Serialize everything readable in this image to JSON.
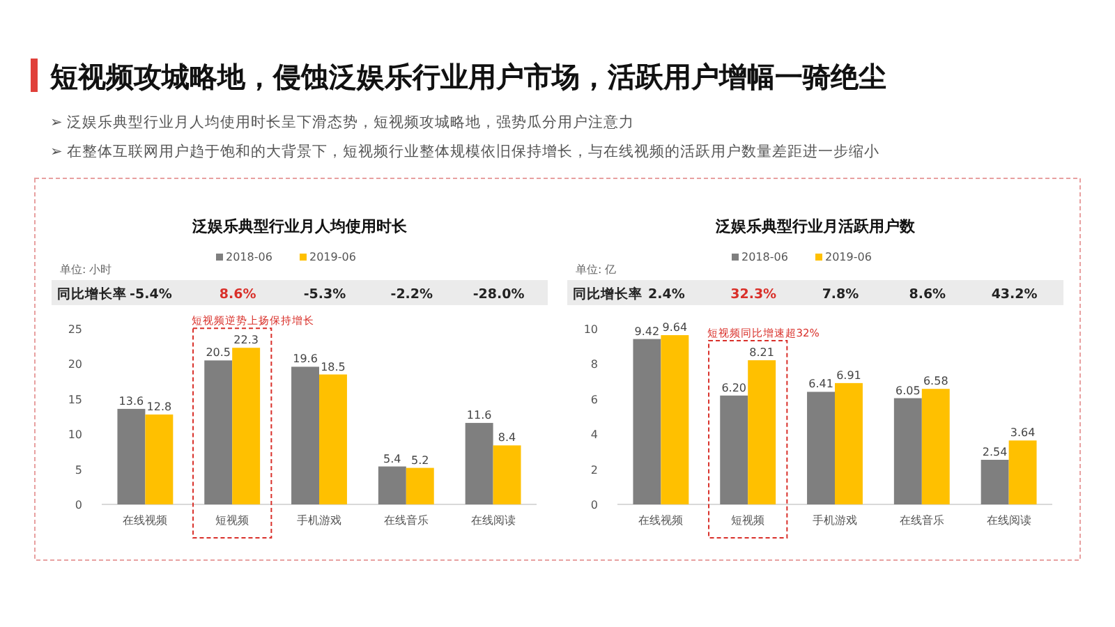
{
  "chart_data": [
    {
      "type": "bar",
      "title": "泛娱乐典型行业月人均使用时长",
      "ylabel": "单位: 小时",
      "categories": [
        "在线视频",
        "短视频",
        "手机游戏",
        "在线音乐",
        "在线阅读"
      ],
      "series": [
        {
          "name": "2018-06",
          "color": "#7f7f7f",
          "values": [
            13.6,
            20.5,
            19.6,
            5.4,
            11.6
          ]
        },
        {
          "name": "2019-06",
          "color": "#ffc000",
          "values": [
            12.8,
            22.3,
            18.5,
            5.2,
            8.4
          ]
        }
      ],
      "ylim": [
        0,
        25
      ],
      "yticks": [
        0,
        5,
        10,
        15,
        20,
        25
      ],
      "legend": "top",
      "data_labels": true,
      "annotations": [
        "短视频攻城略地，侵蚀泛娱乐行业用户市场，活跃用户增幅一骑绝尘",
        "➢ 泛娱乐典型行业月人均使用时长呈下滑态势，短视频攻城略地，强势瓜分用户注意力",
        "➢ 在整体互联网用户趋于饱和的大背景下，短视频行业整体规模依旧保持增长，与在线视频的活跃用户数量差距进一步缩小",
        "同比增长率",
        "-5.4%",
        "8.6%",
        "-5.3%",
        "-2.2%",
        "-28.0%",
        {
          "text": "短视频逆势上扬保持增长",
          "x": "短视频",
          "y": 22.3
        }
      ]
    },
    {
      "type": "bar",
      "title": "泛娱乐典型行业月活跃用户数",
      "ylabel": "单位: 亿",
      "categories": [
        "在线视频",
        "短视频",
        "手机游戏",
        "在线音乐",
        "在线阅读"
      ],
      "series": [
        {
          "name": "2018-06",
          "color": "#7f7f7f",
          "values": [
            9.42,
            6.2,
            6.41,
            6.05,
            2.54
          ],
          "value_labels": [
            "9.42",
            "6.20",
            "6.41",
            "6.05",
            "2.54"
          ]
        },
        {
          "name": "2019-06",
          "color": "#ffc000",
          "values": [
            9.64,
            8.21,
            6.91,
            6.58,
            3.64
          ],
          "value_labels": [
            "9.64",
            "8.21",
            "6.91",
            "6.58",
            "3.64"
          ]
        }
      ],
      "ylim": [
        0,
        10
      ],
      "yticks": [
        0,
        2,
        4,
        6,
        8,
        10
      ],
      "legend": "top",
      "annotations": [
        "同比增长率",
        "2.4%",
        "32.3%",
        "7.8%",
        "8.6%",
        "43.2%",
        {
          "text": "短视频同比增速超32%",
          "x": "短视频",
          "y": 8.21
        }
      ]
    }
  ]
}
